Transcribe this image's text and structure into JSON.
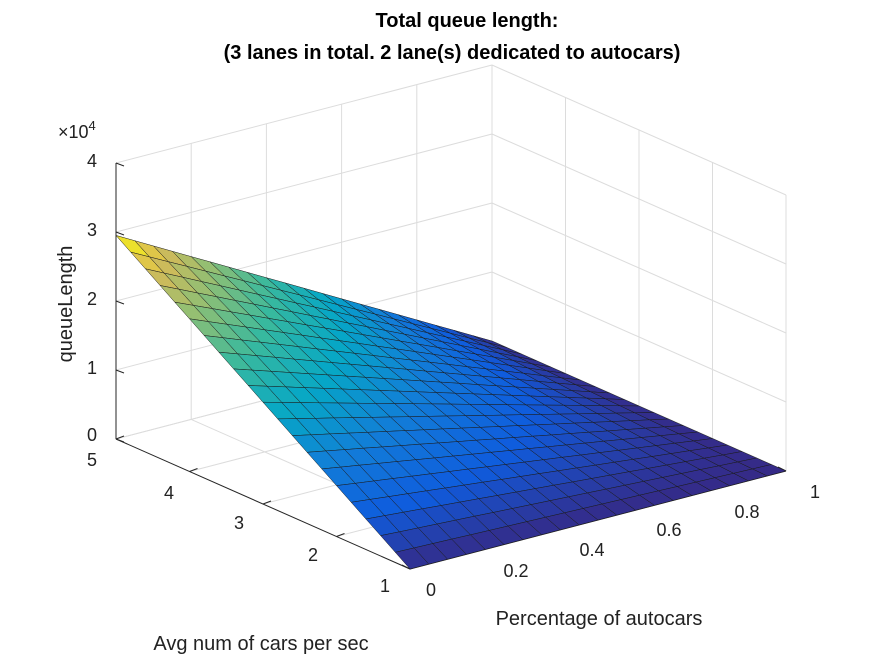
{
  "chart_data": {
    "type": "surface",
    "title_lines": [
      "Total queue length:",
      "(3 lanes in total. 2 lane(s) dedicated to autocars)"
    ],
    "xlabel": "Percentage of autocars",
    "ylabel": "Avg num of cars per sec",
    "zlabel": "queueLength",
    "z_exponent_label": "×10",
    "z_exponent": "4",
    "x_range": [
      0,
      1
    ],
    "y_range": [
      1,
      5
    ],
    "z_range": [
      0,
      40000
    ],
    "x_ticks": [
      "0",
      "0.2",
      "0.4",
      "0.6",
      "0.8",
      "1"
    ],
    "y_ticks": [
      "1",
      "2",
      "3",
      "4",
      "5"
    ],
    "z_ticks": [
      "0",
      "1",
      "2",
      "3",
      "4"
    ],
    "grid": true,
    "colormap": "parula",
    "corner_values": [
      {
        "x": 0,
        "y": 5,
        "z": 29500
      },
      {
        "x": 0,
        "y": 1,
        "z": 0
      },
      {
        "x": 1,
        "y": 5,
        "z": 0
      },
      {
        "x": 1,
        "y": 1,
        "z": 0
      }
    ]
  }
}
